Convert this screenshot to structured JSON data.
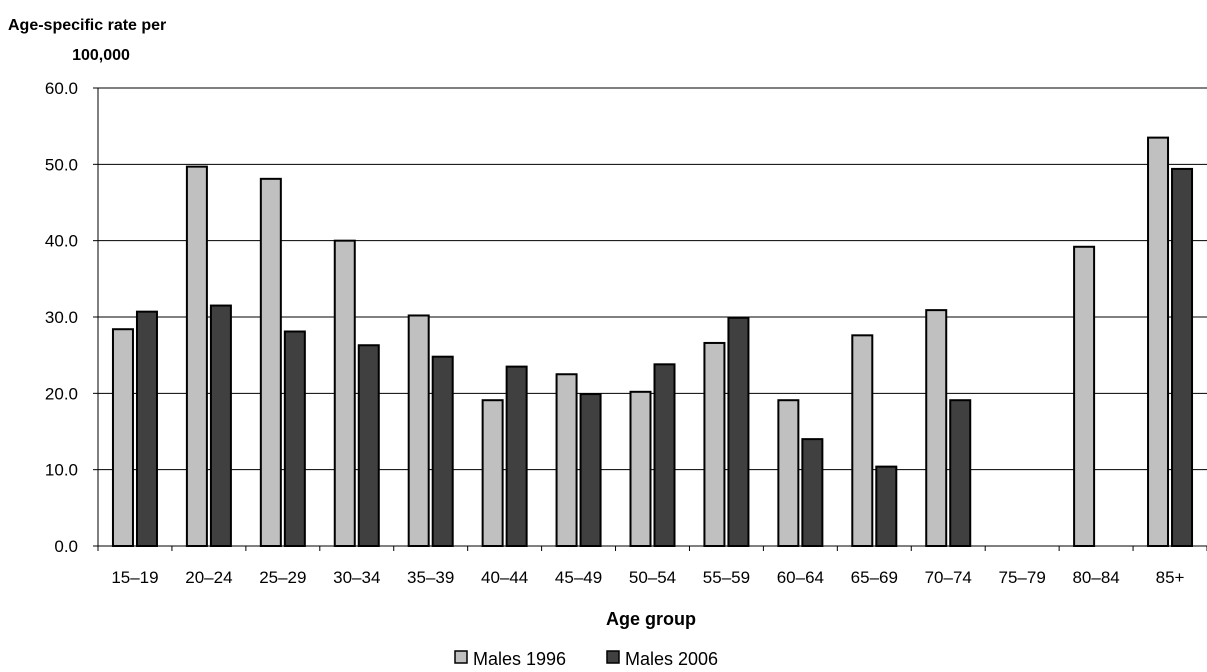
{
  "chart_data": {
    "type": "bar",
    "ylabel": [
      "Age-specific rate per",
      "100,000"
    ],
    "xlabel": "Age group",
    "ylim": [
      0,
      60
    ],
    "yticks": [
      "0.0",
      "10.0",
      "20.0",
      "30.0",
      "40.0",
      "50.0",
      "60.0"
    ],
    "grid": true,
    "legend_position": "bottom",
    "categories": [
      "15–19",
      "20–24",
      "25–29",
      "30–34",
      "35–39",
      "40–44",
      "45–49",
      "50–54",
      "55–59",
      "60–64",
      "65–69",
      "70–74",
      "75–79",
      "80–84",
      "85+"
    ],
    "series": [
      {
        "name": "Males 1996",
        "color": "#c0c0c0",
        "values": [
          28.4,
          49.7,
          48.1,
          40.0,
          30.2,
          19.1,
          22.5,
          20.2,
          26.6,
          19.1,
          27.6,
          30.9,
          null,
          39.2,
          53.5
        ]
      },
      {
        "name": "Males 2006",
        "color": "#404040",
        "values": [
          30.7,
          31.5,
          28.1,
          26.3,
          24.8,
          23.5,
          19.9,
          23.8,
          29.9,
          14.0,
          10.4,
          19.1,
          null,
          null,
          49.4
        ]
      }
    ]
  }
}
